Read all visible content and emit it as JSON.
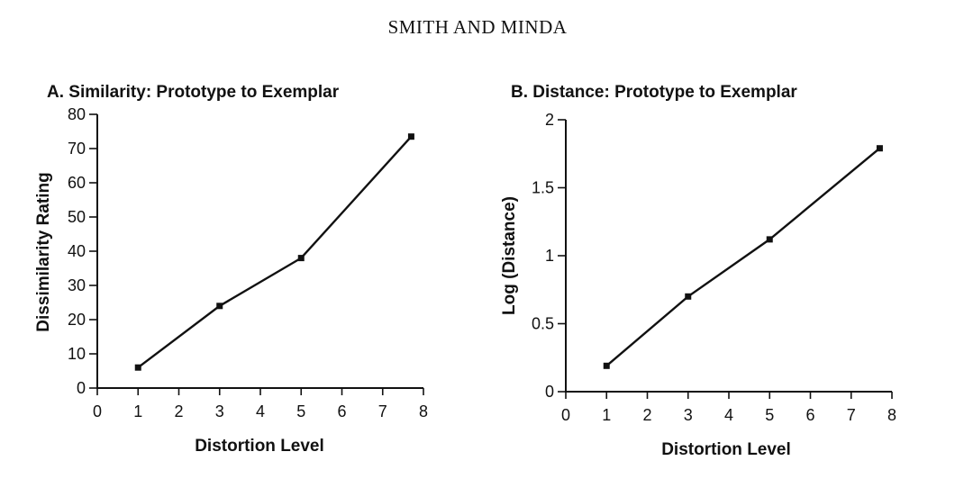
{
  "header": {
    "running_head": "SMITH AND MINDA"
  },
  "chart_data": [
    {
      "type": "line",
      "title": "A. Similarity: Prototype to Exemplar",
      "xlabel": "Distortion Level",
      "ylabel": "Dissimilarity Rating",
      "xlim": [
        0,
        8
      ],
      "ylim": [
        0,
        80
      ],
      "xticks": [
        0,
        1,
        2,
        3,
        4,
        5,
        6,
        7,
        8
      ],
      "yticks": [
        0,
        10,
        20,
        30,
        40,
        50,
        60,
        70,
        80
      ],
      "grid": false,
      "series": [
        {
          "x": [
            1,
            3,
            5,
            7.7
          ],
          "y": [
            6,
            24,
            38,
            73.5
          ]
        }
      ]
    },
    {
      "type": "line",
      "title": "B. Distance: Prototype to Exemplar",
      "xlabel": "Distortion Level",
      "ylabel": "Log (Distance)",
      "xlim": [
        0,
        8
      ],
      "ylim": [
        0,
        2
      ],
      "xticks": [
        0,
        1,
        2,
        3,
        4,
        5,
        6,
        7,
        8
      ],
      "yticks": [
        0,
        0.5,
        1,
        1.5,
        2
      ],
      "grid": false,
      "series": [
        {
          "x": [
            1,
            3,
            5,
            7.7
          ],
          "y": [
            0.19,
            0.7,
            1.12,
            1.79
          ]
        }
      ]
    }
  ]
}
